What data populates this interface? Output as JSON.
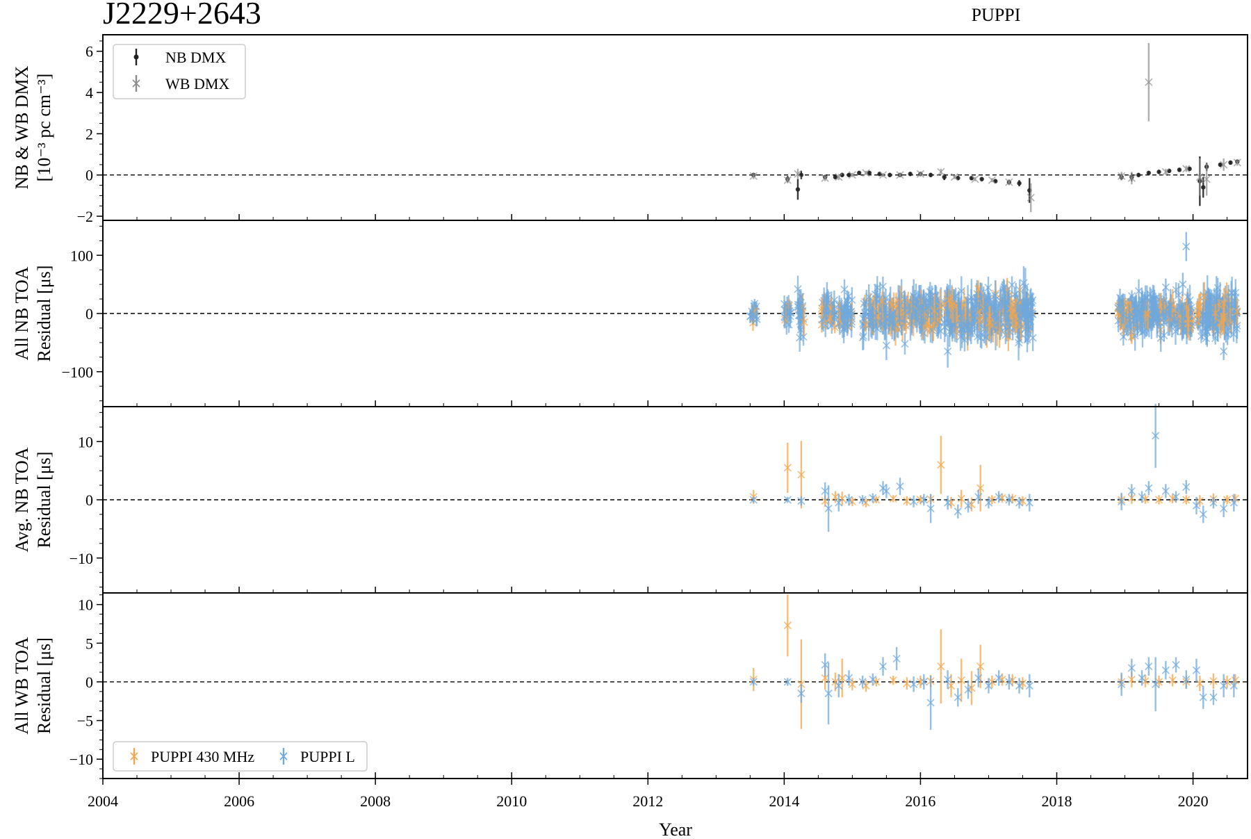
{
  "figure": {
    "title": "J2229+2643",
    "subtitle": "PUPPI",
    "xlabel": "Year"
  },
  "colors": {
    "nb_dmx": "#222222",
    "wb_dmx": "#8c8c8c",
    "puppi_430": "#f5a54a",
    "puppi_l": "#6fa8dc"
  },
  "chart_data": [
    {
      "type": "scatter",
      "panel": "dmx",
      "ylabel_lines": [
        "NB & WB DMX",
        "[10⁻³ pc cm⁻³]"
      ],
      "xlim": [
        2004,
        2020.8
      ],
      "ylim": [
        -2.2,
        6.8
      ],
      "yticks": [
        -2,
        0,
        2,
        4,
        6
      ],
      "yticklabels": [
        "−2",
        "0",
        "2",
        "4",
        "6"
      ],
      "legend": {
        "loc": "upper-left",
        "entries": [
          "NB DMX",
          "WB DMX"
        ]
      },
      "series": [
        {
          "name": "NB DMX",
          "marker": "dot",
          "x": [
            2013.55,
            2014.05,
            2014.2,
            2014.25,
            2014.6,
            2014.75,
            2014.85,
            2014.95,
            2015.1,
            2015.25,
            2015.4,
            2015.55,
            2015.7,
            2015.85,
            2016.0,
            2016.15,
            2016.35,
            2016.55,
            2016.75,
            2016.9,
            2017.1,
            2017.3,
            2017.45,
            2017.6,
            2018.95,
            2019.1,
            2019.2,
            2019.35,
            2019.5,
            2019.65,
            2019.8,
            2019.95,
            2020.1,
            2020.15,
            2020.2,
            2020.4,
            2020.55,
            2020.65
          ],
          "y": [
            0.0,
            -0.2,
            -0.7,
            0.0,
            -0.1,
            -0.1,
            0.0,
            0.0,
            0.1,
            0.1,
            0.05,
            0.0,
            0.0,
            0.05,
            0.05,
            0.0,
            -0.1,
            -0.15,
            -0.15,
            -0.2,
            -0.3,
            -0.35,
            -0.4,
            -0.75,
            -0.1,
            -0.1,
            0.0,
            0.1,
            0.15,
            0.2,
            0.25,
            0.3,
            -0.3,
            -0.6,
            0.4,
            0.5,
            0.6,
            0.65
          ],
          "err": [
            0.1,
            0.15,
            0.5,
            0.2,
            0.1,
            0.1,
            0.1,
            0.1,
            0.1,
            0.1,
            0.1,
            0.1,
            0.1,
            0.1,
            0.1,
            0.1,
            0.15,
            0.1,
            0.1,
            0.1,
            0.1,
            0.1,
            0.15,
            0.6,
            0.15,
            0.2,
            0.1,
            0.1,
            0.1,
            0.1,
            0.1,
            0.1,
            1.2,
            0.5,
            0.2,
            0.1,
            0.1,
            0.1
          ]
        },
        {
          "name": "WB DMX",
          "marker": "x",
          "x": [
            2013.55,
            2014.05,
            2014.2,
            2014.6,
            2014.8,
            2015.0,
            2015.2,
            2015.45,
            2015.7,
            2016.0,
            2016.3,
            2016.5,
            2016.8,
            2017.05,
            2017.3,
            2017.62,
            2018.95,
            2019.1,
            2019.35,
            2019.6,
            2019.9,
            2020.1,
            2020.2,
            2020.45,
            2020.65
          ],
          "y": [
            -0.05,
            -0.25,
            0.05,
            -0.15,
            -0.1,
            0.0,
            0.1,
            0.0,
            0.0,
            0.05,
            0.15,
            -0.1,
            -0.2,
            -0.25,
            -0.35,
            -1.1,
            -0.05,
            -0.15,
            4.5,
            0.15,
            0.3,
            -0.1,
            -0.2,
            0.5,
            0.6
          ],
          "err": [
            0.15,
            0.15,
            0.25,
            0.15,
            0.15,
            0.1,
            0.1,
            0.1,
            0.1,
            0.1,
            0.15,
            0.1,
            0.1,
            0.1,
            0.15,
            0.7,
            0.2,
            0.3,
            1.9,
            0.15,
            0.15,
            0.9,
            0.8,
            0.3,
            0.15
          ]
        }
      ]
    },
    {
      "type": "scatter",
      "panel": "all_nb",
      "ylabel_lines": [
        "All NB TOA",
        "Residual [μs]"
      ],
      "xlim": [
        2004,
        2020.8
      ],
      "ylim": [
        -160,
        160
      ],
      "yticks": [
        -100,
        0,
        100
      ],
      "yticklabels": [
        "−100",
        "0",
        "100"
      ],
      "clusters": [
        {
          "x0": 2013.5,
          "x1": 2013.6,
          "spread": 10,
          "count": 18,
          "err": 12
        },
        {
          "x0": 2014.0,
          "x1": 2014.1,
          "spread": 12,
          "count": 18,
          "err": 14
        },
        {
          "x0": 2014.2,
          "x1": 2014.3,
          "spread": 18,
          "count": 22,
          "err": 18
        },
        {
          "x0": 2014.55,
          "x1": 2014.75,
          "spread": 14,
          "count": 40,
          "err": 16
        },
        {
          "x0": 2014.8,
          "x1": 2015.0,
          "spread": 14,
          "count": 45,
          "err": 16
        },
        {
          "x0": 2015.15,
          "x1": 2016.3,
          "spread": 18,
          "count": 260,
          "err": 20
        },
        {
          "x0": 2016.35,
          "x1": 2017.65,
          "spread": 20,
          "count": 300,
          "err": 22
        },
        {
          "x0": 2018.9,
          "x1": 2020.0,
          "spread": 16,
          "count": 260,
          "err": 18
        },
        {
          "x0": 2020.05,
          "x1": 2020.65,
          "spread": 18,
          "count": 150,
          "err": 20
        }
      ],
      "outliers": [
        {
          "x": 2019.9,
          "y": 115,
          "err": 25,
          "series": "PUPPI L"
        },
        {
          "x": 2019.85,
          "y": 50,
          "err": 20,
          "series": "PUPPI L"
        },
        {
          "x": 2016.4,
          "y": -65,
          "err": 28,
          "series": "PUPPI L"
        },
        {
          "x": 2020.45,
          "y": -65,
          "err": 15,
          "series": "PUPPI L"
        },
        {
          "x": 2019.1,
          "y": -40,
          "err": 12,
          "series": "PUPPI 430 MHz"
        },
        {
          "x": 2016.85,
          "y": 42,
          "err": 15,
          "series": "PUPPI 430 MHz"
        },
        {
          "x": 2015.5,
          "y": -55,
          "err": 25,
          "series": "PUPPI L"
        },
        {
          "x": 2019.6,
          "y": 45,
          "err": 15,
          "series": "PUPPI L"
        }
      ]
    },
    {
      "type": "scatter",
      "panel": "avg_nb",
      "ylabel_lines": [
        "Avg. NB TOA",
        "Residual [μs]"
      ],
      "xlim": [
        2004,
        2020.8
      ],
      "ylim": [
        -16,
        16
      ],
      "yticks": [
        -10,
        0,
        10
      ],
      "yticklabels": [
        "−10",
        "0",
        "10"
      ],
      "series": [
        {
          "name": "PUPPI 430 MHz",
          "x": [
            2013.55,
            2014.05,
            2014.25,
            2014.6,
            2014.75,
            2014.85,
            2015.0,
            2015.2,
            2015.35,
            2015.6,
            2015.8,
            2016.0,
            2016.15,
            2016.3,
            2016.45,
            2016.6,
            2016.75,
            2016.88,
            2017.05,
            2017.2,
            2017.35,
            2017.5,
            2018.95,
            2019.1,
            2019.3,
            2019.5,
            2019.7,
            2019.9,
            2020.1,
            2020.3,
            2020.5,
            2020.62
          ],
          "y": [
            0.5,
            5.5,
            4.3,
            -0.2,
            0.5,
            0.2,
            -0.3,
            -0.5,
            0.0,
            0.2,
            -0.2,
            0.0,
            0.1,
            6.0,
            -0.5,
            0.2,
            -0.8,
            2.0,
            0.0,
            0.3,
            0.2,
            -0.2,
            0.0,
            0.3,
            0.1,
            0.0,
            0.2,
            0.0,
            -0.2,
            0.1,
            0.0,
            0.2
          ],
          "err": [
            1.2,
            4.3,
            5.8,
            1.0,
            1.0,
            1.2,
            0.8,
            0.8,
            0.6,
            0.6,
            0.8,
            0.8,
            0.8,
            5.0,
            1.0,
            1.5,
            1.2,
            4.0,
            0.8,
            0.8,
            0.8,
            0.8,
            1.0,
            1.0,
            0.8,
            0.8,
            0.8,
            0.8,
            1.0,
            1.0,
            0.8,
            0.8
          ]
        },
        {
          "name": "PUPPI L",
          "x": [
            2013.55,
            2014.05,
            2014.25,
            2014.6,
            2014.65,
            2014.8,
            2014.95,
            2015.15,
            2015.3,
            2015.45,
            2015.5,
            2015.7,
            2015.9,
            2016.05,
            2016.15,
            2016.4,
            2016.55,
            2016.7,
            2016.85,
            2017.0,
            2017.15,
            2017.3,
            2017.45,
            2017.6,
            2018.95,
            2019.1,
            2019.25,
            2019.35,
            2019.45,
            2019.6,
            2019.75,
            2019.9,
            2020.05,
            2020.15,
            2020.3,
            2020.45,
            2020.6
          ],
          "y": [
            0.0,
            0.0,
            -0.2,
            1.5,
            -1.5,
            -0.5,
            0.0,
            0.0,
            0.3,
            2.0,
            1.5,
            2.3,
            -0.3,
            0.0,
            -1.5,
            -0.5,
            -2.0,
            -1.0,
            0.5,
            -0.5,
            0.5,
            0.0,
            -0.5,
            -0.5,
            -0.3,
            1.5,
            0.5,
            2.0,
            11.0,
            1.5,
            0.5,
            2.2,
            -1.0,
            -2.5,
            -0.5,
            -1.5,
            -0.5
          ],
          "err": [
            0.5,
            0.5,
            0.8,
            1.5,
            4.0,
            1.5,
            1.0,
            0.8,
            0.8,
            1.2,
            1.2,
            1.5,
            1.0,
            1.0,
            2.5,
            1.2,
            1.2,
            1.2,
            1.2,
            1.0,
            1.0,
            1.0,
            1.0,
            1.5,
            1.5,
            1.2,
            1.0,
            1.2,
            5.5,
            1.2,
            1.0,
            1.2,
            1.5,
            1.5,
            1.0,
            1.5,
            1.5
          ]
        }
      ]
    },
    {
      "type": "scatter",
      "panel": "all_wb",
      "ylabel_lines": [
        "All WB TOA",
        "Residual [μs]"
      ],
      "xlim": [
        2004,
        2020.8
      ],
      "ylim": [
        -12.5,
        11.5
      ],
      "yticks": [
        -10,
        -5,
        0,
        5,
        10
      ],
      "yticklabels": [
        "−10",
        "−5",
        "0",
        "5",
        "10"
      ],
      "legend": {
        "loc": "lower-left",
        "entries": [
          "PUPPI 430 MHz",
          "PUPPI L"
        ]
      },
      "series": [
        {
          "name": "PUPPI 430 MHz",
          "x": [
            2013.55,
            2014.05,
            2014.25,
            2014.6,
            2014.75,
            2014.85,
            2015.0,
            2015.2,
            2015.35,
            2015.6,
            2015.8,
            2016.0,
            2016.15,
            2016.3,
            2016.45,
            2016.6,
            2016.75,
            2016.88,
            2017.05,
            2017.2,
            2017.35,
            2017.5,
            2018.95,
            2019.1,
            2019.3,
            2019.5,
            2019.7,
            2019.9,
            2020.1,
            2020.3,
            2020.5,
            2020.62
          ],
          "y": [
            0.3,
            7.3,
            -0.3,
            0.5,
            0.0,
            0.5,
            -0.3,
            -0.5,
            0.0,
            0.2,
            -0.2,
            0.0,
            0.1,
            2.0,
            -0.5,
            0.2,
            -0.8,
            2.0,
            0.0,
            0.3,
            0.2,
            -0.2,
            0.0,
            0.3,
            0.1,
            0.0,
            0.2,
            0.0,
            -0.2,
            0.1,
            0.0,
            0.2
          ],
          "err": [
            1.5,
            4.0,
            5.8,
            1.5,
            1.2,
            2.5,
            0.8,
            0.8,
            0.6,
            0.6,
            0.8,
            0.8,
            0.8,
            4.8,
            1.5,
            2.8,
            2.2,
            2.8,
            0.8,
            0.8,
            0.8,
            0.8,
            1.0,
            1.0,
            0.8,
            0.8,
            0.8,
            0.8,
            1.0,
            1.0,
            0.8,
            0.8
          ]
        },
        {
          "name": "PUPPI L",
          "x": [
            2013.55,
            2014.05,
            2014.25,
            2014.6,
            2014.65,
            2014.8,
            2014.95,
            2015.15,
            2015.3,
            2015.45,
            2015.65,
            2015.9,
            2016.05,
            2016.15,
            2016.4,
            2016.55,
            2016.7,
            2016.85,
            2017.0,
            2017.15,
            2017.3,
            2017.45,
            2017.6,
            2018.95,
            2019.1,
            2019.25,
            2019.35,
            2019.45,
            2019.6,
            2019.75,
            2019.9,
            2020.05,
            2020.15,
            2020.3,
            2020.45,
            2020.6
          ],
          "y": [
            0.0,
            0.0,
            -1.5,
            2.2,
            -1.5,
            -0.5,
            0.5,
            0.0,
            0.3,
            2.0,
            3.0,
            -0.3,
            0.0,
            -2.7,
            0.3,
            -2.0,
            -1.0,
            0.5,
            -0.5,
            0.5,
            0.0,
            -0.5,
            -0.5,
            -0.3,
            1.8,
            0.5,
            2.0,
            -0.3,
            1.5,
            2.2,
            0.3,
            1.5,
            -2.0,
            -2.0,
            -0.5,
            -0.5
          ],
          "err": [
            0.5,
            0.5,
            1.2,
            1.5,
            4.0,
            1.5,
            1.0,
            0.8,
            0.8,
            1.2,
            1.5,
            1.0,
            1.0,
            3.5,
            1.2,
            1.2,
            1.2,
            1.2,
            1.0,
            1.0,
            1.0,
            1.0,
            1.5,
            1.5,
            1.2,
            1.0,
            1.2,
            3.5,
            1.2,
            1.0,
            1.2,
            1.5,
            1.5,
            1.0,
            1.5,
            1.5
          ]
        }
      ]
    }
  ],
  "xaxis": {
    "ticks": [
      2004,
      2006,
      2008,
      2010,
      2012,
      2014,
      2016,
      2018,
      2020
    ],
    "ticklabels": [
      "2004",
      "2006",
      "2008",
      "2010",
      "2012",
      "2014",
      "2016",
      "2018",
      "2020"
    ]
  }
}
